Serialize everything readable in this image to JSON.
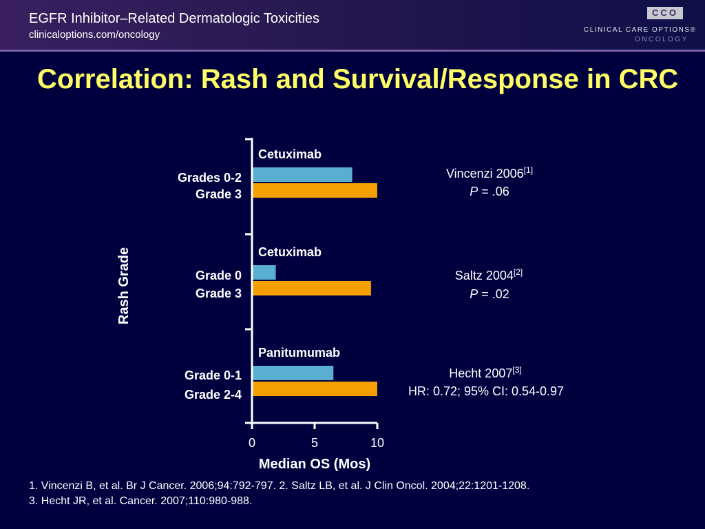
{
  "header": {
    "title": "EGFR Inhibitor–Related Dermatologic Toxicities",
    "url": "clinicaloptions.com/oncology",
    "logo_mark": "CCO",
    "logo_name": "CLINICAL CARE OPTIONS®",
    "logo_sub": "ONCOLOGY"
  },
  "slide_title": "Correlation: Rash and Survival/Response in CRC",
  "colors": {
    "low_grade_bar": "#5aaed0",
    "high_grade_bar": "#f5a000",
    "title": "#ffff66",
    "background": "#00003f"
  },
  "chart_data": {
    "type": "bar",
    "orientation": "horizontal",
    "xlabel": "Median OS (Mos)",
    "ylabel": "Rash Grade",
    "xlim": [
      0,
      10
    ],
    "x_ticks": [
      "0",
      "5",
      "10"
    ],
    "groups": [
      {
        "drug": "Cetuximab",
        "bars": [
          {
            "label": "Grades 0-2",
            "value": 8.0,
            "color": "#5aaed0"
          },
          {
            "label": "Grade 3",
            "value": 10.0,
            "color": "#f5a000"
          }
        ],
        "study": "Vincenzi 2006",
        "ref": "[1]",
        "stat_italic": "P",
        "stat": " = .06"
      },
      {
        "drug": "Cetuximab",
        "bars": [
          {
            "label": "Grade 0",
            "value": 1.9,
            "color": "#5aaed0"
          },
          {
            "label": "Grade 3",
            "value": 9.5,
            "color": "#f5a000"
          }
        ],
        "study": "Saltz 2004",
        "ref": "[2]",
        "stat_italic": "P",
        "stat": " = .02"
      },
      {
        "drug": "Panitumumab",
        "bars": [
          {
            "label": "Grade 0-1",
            "value": 6.5,
            "color": "#5aaed0"
          },
          {
            "label": "Grade 2-4",
            "value": 10.0,
            "color": "#f5a000"
          }
        ],
        "study": "Hecht 2007",
        "ref": "[3]",
        "stat_italic": "",
        "stat": "HR: 0.72; 95% CI: 0.54-0.97"
      }
    ]
  },
  "references": [
    "1. Vincenzi B, et al. Br J Cancer. 2006;94:792-797. 2. Saltz LB, et al. J Clin Oncol. 2004;22:1201-1208.",
    "3. Hecht JR, et al. Cancer. 2007;110:980-988."
  ]
}
